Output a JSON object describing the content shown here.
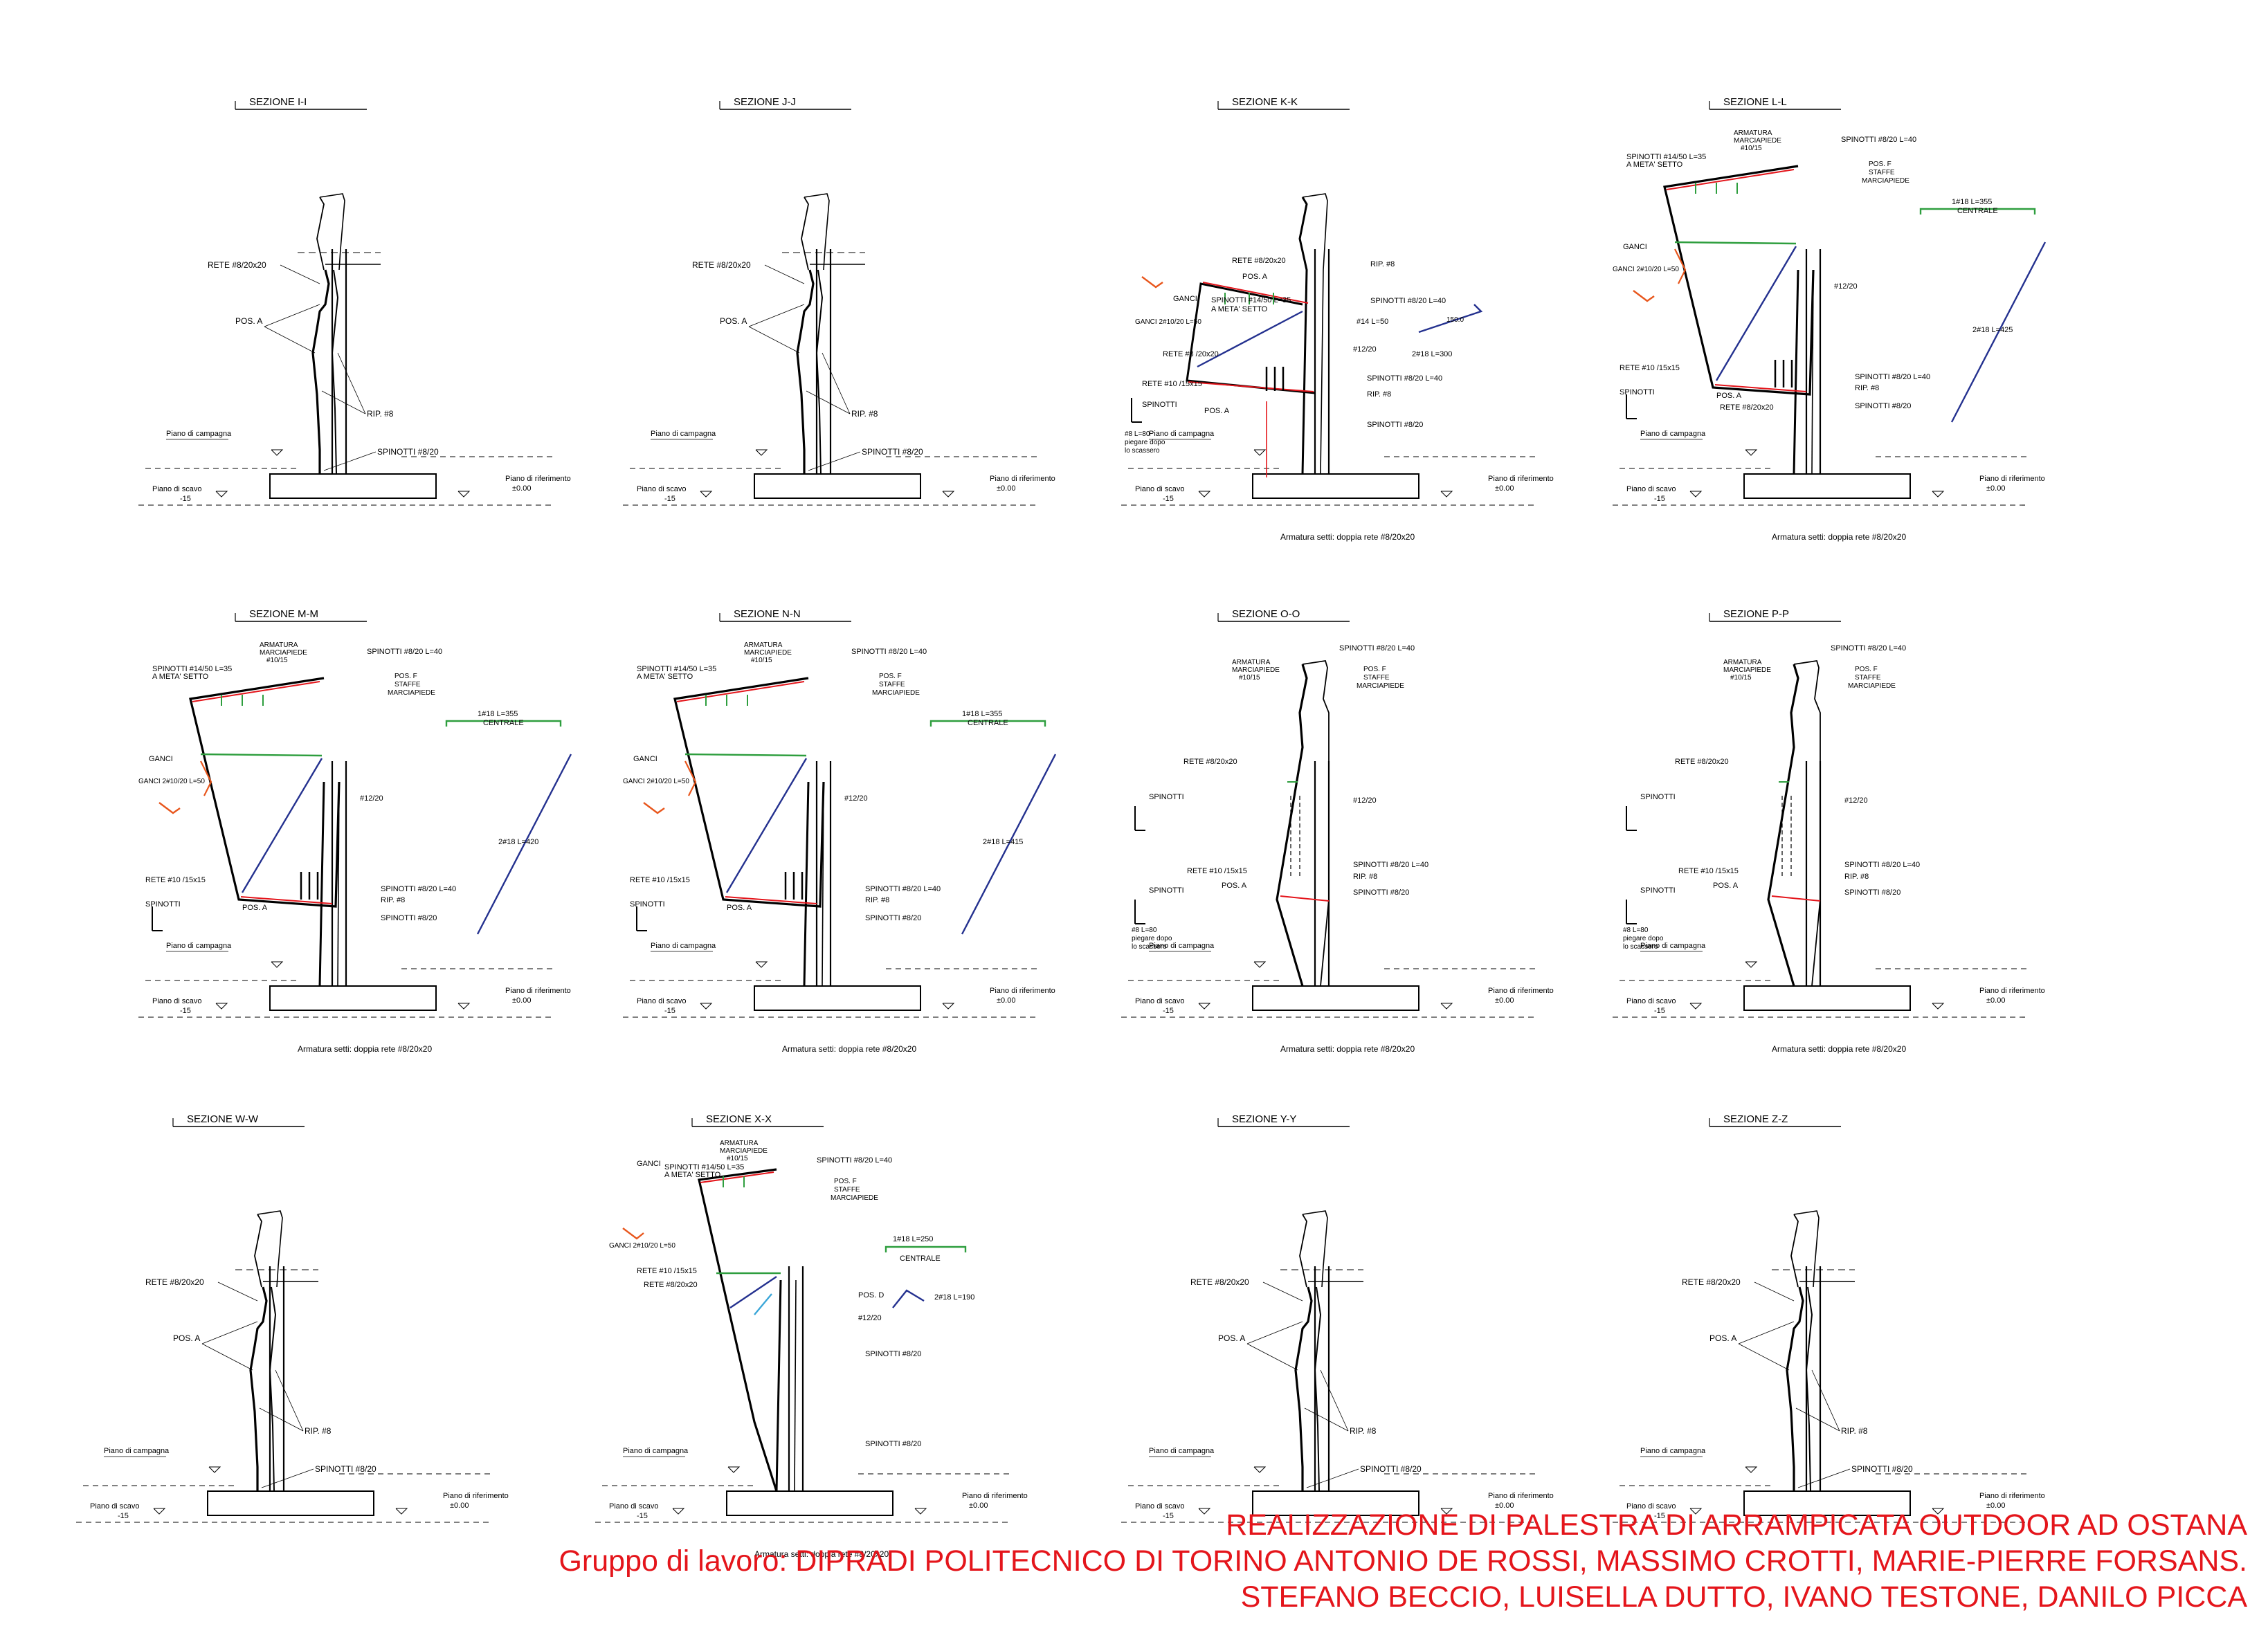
{
  "sections": [
    {
      "title": "SEZIONE I-I",
      "type": "simple",
      "labels": [
        "RETE #8/20x20",
        "POS. A",
        "RIP. #8",
        "SPINOTTI #8/20"
      ],
      "levels": [
        "Piano di campagna",
        "Piano di scavo",
        "-15",
        "Piano di riferimento",
        "±0.00"
      ],
      "note": ""
    },
    {
      "title": "SEZIONE J-J",
      "type": "simple",
      "labels": [
        "RETE #8/20x20",
        "POS. A",
        "RIP. #8",
        "SPINOTTI #8/20"
      ],
      "levels": [
        "Piano di campagna",
        "Piano di scavo",
        "-15",
        "Piano di riferimento",
        "±0.00"
      ],
      "note": ""
    },
    {
      "title": "SEZIONE K-K",
      "type": "kk",
      "labels": [
        "RETE #8/20x20",
        "POS. A",
        "RIP. #8",
        "SPINOTTI #8/20 L=40",
        "SPINOTTI #14/50 L=35",
        "A META' SETTO",
        "GANCI",
        "GANCI 2#10/20 L=50",
        "RETE #8 /20x20",
        "#14 L=50",
        "#12/20",
        "2#18 L=300",
        "RETE #10 /15x15",
        "SPINOTTI #8/20 L=40",
        "SPINOTTI",
        "RIP. #8",
        "POS. A",
        "SPINOTTI #8/20",
        "#8 L=80",
        "piegare dopo",
        "lo scassero",
        "150.0"
      ],
      "levels": [
        "Piano di campagna",
        "Piano di scavo",
        "-15",
        "Piano di riferimento",
        "±0.00"
      ],
      "note": "Armatura setti: doppia rete #8/20x20"
    },
    {
      "title": "SEZIONE L-L",
      "type": "ll",
      "labels": [
        "ARMATURA",
        "MARCIAPIEDE",
        "#10/15",
        "SPINOTTI #8/20 L=40",
        "SPINOTTI #14/50 L=35",
        "A META' SETTO",
        "POS. F",
        "STAFFE",
        "MARCIAPIEDE",
        "GANCI",
        "GANCI 2#10/20 L=50",
        "#12/20",
        "RETE #10 /15x15",
        "SPINOTTI",
        "POS. A",
        "RETE #8/20x20",
        "SPINOTTI #8/20 L=40",
        "RIP. #8",
        "SPINOTTI #8/20",
        "1#18 L=355",
        "CENTRALE",
        "2#18 L=425"
      ],
      "levels": [
        "Piano di campagna",
        "Piano di scavo",
        "-15",
        "Piano di riferimento",
        "±0.00"
      ],
      "note": "Armatura setti: doppia rete #8/20x20"
    },
    {
      "title": "SEZIONE M-M",
      "type": "ll",
      "labels": [
        "ARMATURA",
        "MARCIAPIEDE",
        "#10/15",
        "SPINOTTI #8/20 L=40",
        "SPINOTTI #14/50 L=35",
        "A META' SETTO",
        "POS. F",
        "STAFFE",
        "MARCIAPIEDE",
        "GANCI",
        "GANCI 2#10/20 L=50",
        "#12/20",
        "RETE #10 /15x15",
        "SPINOTTI",
        "POS. A",
        "SPINOTTI #8/20 L=40",
        "RIP. #8",
        "SPINOTTI #8/20",
        "1#18 L=355",
        "CENTRALE",
        "2#18 L=420"
      ],
      "levels": [
        "Piano di campagna",
        "Piano di scavo",
        "-15",
        "Piano di riferimento",
        "±0.00"
      ],
      "note": "Armatura setti: doppia rete #8/20x20"
    },
    {
      "title": "SEZIONE N-N",
      "type": "ll",
      "labels": [
        "ARMATURA",
        "MARCIAPIEDE",
        "#10/15",
        "SPINOTTI #8/20 L=40",
        "SPINOTTI #14/50 L=35",
        "A META' SETTO",
        "POS. F",
        "STAFFE",
        "MARCIAPIEDE",
        "GANCI",
        "GANCI 2#10/20 L=50",
        "#12/20",
        "RETE #10 /15x15",
        "SPINOTTI",
        "POS. A",
        "SPINOTTI #8/20 L=40",
        "RIP. #8",
        "SPINOTTI #8/20",
        "1#18 L=355",
        "CENTRALE",
        "2#18 L=415"
      ],
      "levels": [
        "Piano di campagna",
        "Piano di scavo",
        "-15",
        "Piano di riferimento",
        "±0.00"
      ],
      "note": "Armatura setti: doppia rete #8/20x20"
    },
    {
      "title": "SEZIONE O-O",
      "type": "oo",
      "labels": [
        "ARMATURA",
        "MARCIAPIEDE",
        "#10/15",
        "SPINOTTI #8/20 L=40",
        "POS. F",
        "STAFFE",
        "MARCIAPIEDE",
        "RETE #8/20x20",
        "SPINOTTI",
        "#12/20",
        "RETE #10 /15x15",
        "SPINOTTI #8/20 L=40",
        "SPINOTTI",
        "RIP. #8",
        "POS. A",
        "SPINOTTI #8/20",
        "#8 L=80",
        "piegare dopo",
        "lo scassero"
      ],
      "levels": [
        "Piano di campagna",
        "Piano di scavo",
        "-15",
        "Piano di riferimento",
        "±0.00"
      ],
      "note": "Armatura setti: doppia rete #8/20x20"
    },
    {
      "title": "SEZIONE P-P",
      "type": "oo",
      "labels": [
        "ARMATURA",
        "MARCIAPIEDE",
        "#10/15",
        "SPINOTTI #8/20 L=40",
        "POS. F",
        "STAFFE",
        "MARCIAPIEDE",
        "RETE #8/20x20",
        "SPINOTTI",
        "#12/20",
        "RETE #10 /15x15",
        "SPINOTTI #8/20 L=40",
        "SPINOTTI",
        "RIP. #8",
        "POS. A",
        "SPINOTTI #8/20",
        "#8 L=80",
        "piegare dopo",
        "lo scassero"
      ],
      "levels": [
        "Piano di campagna",
        "Piano di scavo",
        "-15",
        "Piano di riferimento",
        "±0.00"
      ],
      "note": "Armatura setti: doppia rete #8/20x20"
    },
    {
      "title": "SEZIONE W-W",
      "type": "simple",
      "labels": [
        "RETE #8/20x20",
        "POS. A",
        "RIP. #8",
        "SPINOTTI #8/20"
      ],
      "levels": [
        "Piano di campagna",
        "Piano di scavo",
        "-15",
        "Piano di riferimento",
        "±0.00"
      ],
      "note": ""
    },
    {
      "title": "SEZIONE X-X",
      "type": "xx",
      "labels": [
        "ARMATURA",
        "MARCIAPIEDE",
        "#10/15",
        "SPINOTTI #8/20 L=40",
        "SPINOTTI #14/50 L=35",
        "A META' SETTO",
        "GANCI",
        "POS. F",
        "STAFFE",
        "MARCIAPIEDE",
        "GANCI 2#10/20 L=50",
        "RETE #10 /15x15",
        "RETE #8/20x20",
        "POS. D",
        "#12/20",
        "SPINOTTI #8/20",
        "SPINOTTI #8/20",
        "1#18 L=250",
        "CENTRALE",
        "2#18 L=190"
      ],
      "levels": [
        "Piano di campagna",
        "Piano di scavo",
        "-15",
        "Piano di riferimento",
        "±0.00"
      ],
      "note": "Armatura setti: doppia rete #8/20x20"
    },
    {
      "title": "SEZIONE Y-Y",
      "type": "simple",
      "labels": [
        "RETE #8/20x20",
        "POS. A",
        "RIP. #8",
        "SPINOTTI #8/20"
      ],
      "levels": [
        "Piano di campagna",
        "Piano di scavo",
        "-15",
        "Piano di riferimento",
        "±0.00"
      ],
      "note": ""
    },
    {
      "title": "SEZIONE Z-Z",
      "type": "simple",
      "labels": [
        "RETE #8/20x20",
        "POS. A",
        "RIP. #8",
        "SPINOTTI #8/20"
      ],
      "levels": [
        "Piano di campagna",
        "Piano di scavo",
        "-15",
        "Piano di riferimento",
        "±0.00"
      ],
      "note": ""
    }
  ],
  "credits": {
    "line1": "REALIZZAZIONE DI PALESTRA DI ARRAMPICATA OUTDOOR AD OSTANA",
    "line2": "Gruppo di lavoro: DIPRADI POLITECNICO DI TORINO ANTONIO DE ROSSI, MASSIMO CROTTI, MARIE-PIERRE FORSANS.",
    "line3": "STEFANO BECCIO, LUISELLA DUTTO, IVANO TESTONE, DANILO PICCA"
  },
  "colors": {
    "line": "#000000",
    "accent_red": "#e4151b",
    "rebar_green": "#2e9e3e",
    "rebar_blue": "#24318f",
    "rebar_orange": "#e8561c",
    "cyan": "#3aa6d8"
  }
}
